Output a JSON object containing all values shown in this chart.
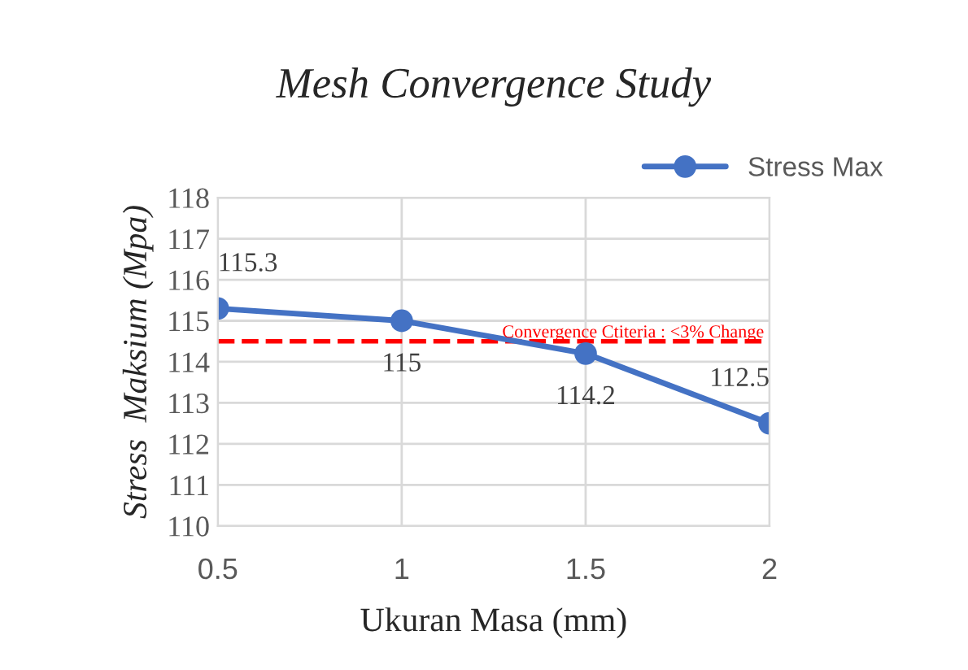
{
  "chart_data": {
    "type": "line",
    "title": "Mesh Convergence Study",
    "xlabel": "Ukuran Masa (mm)",
    "ylabel": "Stress  Maksium (Mpa)",
    "x": [
      0.5,
      1,
      1.5,
      2
    ],
    "series": [
      {
        "name": "Stress Max",
        "color": "#4472c4",
        "values": [
          115.3,
          115,
          114.2,
          112.5
        ]
      }
    ],
    "xlim": [
      0.5,
      2
    ],
    "xticks": [
      0.5,
      1,
      1.5,
      2
    ],
    "ylim": [
      110,
      118
    ],
    "yticks": [
      110,
      111,
      112,
      113,
      114,
      115,
      116,
      117,
      118
    ],
    "ref_lines": [
      {
        "axis": "y",
        "value": 114.5,
        "label": "Convergence Ctiteria : <3% Change",
        "color": "#ff0000",
        "line_style": "dashed"
      }
    ],
    "grid": true,
    "legend": "top right",
    "marker": "circle",
    "line_style": "solid",
    "data_labels": true
  }
}
